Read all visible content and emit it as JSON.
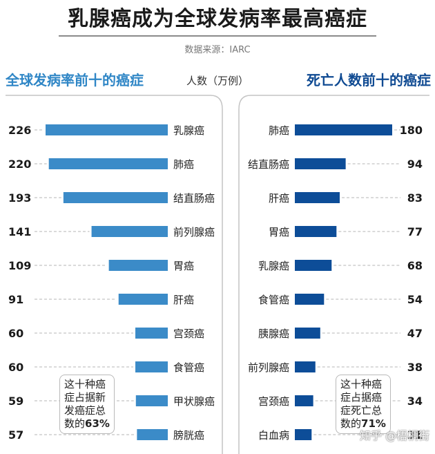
{
  "title": "乳腺癌成为全球发病率最高癌症",
  "source": "数据来源：IARC",
  "unit_label": "人数（万例）",
  "colors": {
    "left_bar": "#3b8bc8",
    "right_bar": "#0d4d98",
    "left_heading": "#2f86c6",
    "right_heading": "#0f4a92"
  },
  "watermark": "知乎 @梧桐街",
  "notes": {
    "left": {
      "line1": "这十种癌",
      "line2": "症占据新",
      "line3": "发癌症总",
      "line4_prefix": "数的",
      "line4_value": "63%"
    },
    "right": {
      "line1": "这十种癌",
      "line2": "症占据癌",
      "line3": "症死亡总",
      "line4_prefix": "数的",
      "line4_value": "71%"
    }
  },
  "chart_data": [
    {
      "type": "bar",
      "title": "全球发病率前十的癌症",
      "categories": [
        "乳腺癌",
        "肺癌",
        "结直肠癌",
        "前列腺癌",
        "胃癌",
        "肝癌",
        "宫颈癌",
        "食管癌",
        "甲状腺癌",
        "膀胱癌"
      ],
      "values": [
        226,
        220,
        193,
        141,
        109,
        91,
        60,
        60,
        59,
        57
      ],
      "unit": "人数（万例）"
    },
    {
      "type": "bar",
      "title": "死亡人数前十的癌症",
      "categories": [
        "肺癌",
        "结直肠癌",
        "肝癌",
        "胃癌",
        "乳腺癌",
        "食管癌",
        "胰腺癌",
        "前列腺癌",
        "宫颈癌",
        "白血病"
      ],
      "values": [
        180,
        94,
        83,
        77,
        68,
        54,
        47,
        38,
        34,
        31
      ],
      "unit": "人数（万例）"
    }
  ]
}
